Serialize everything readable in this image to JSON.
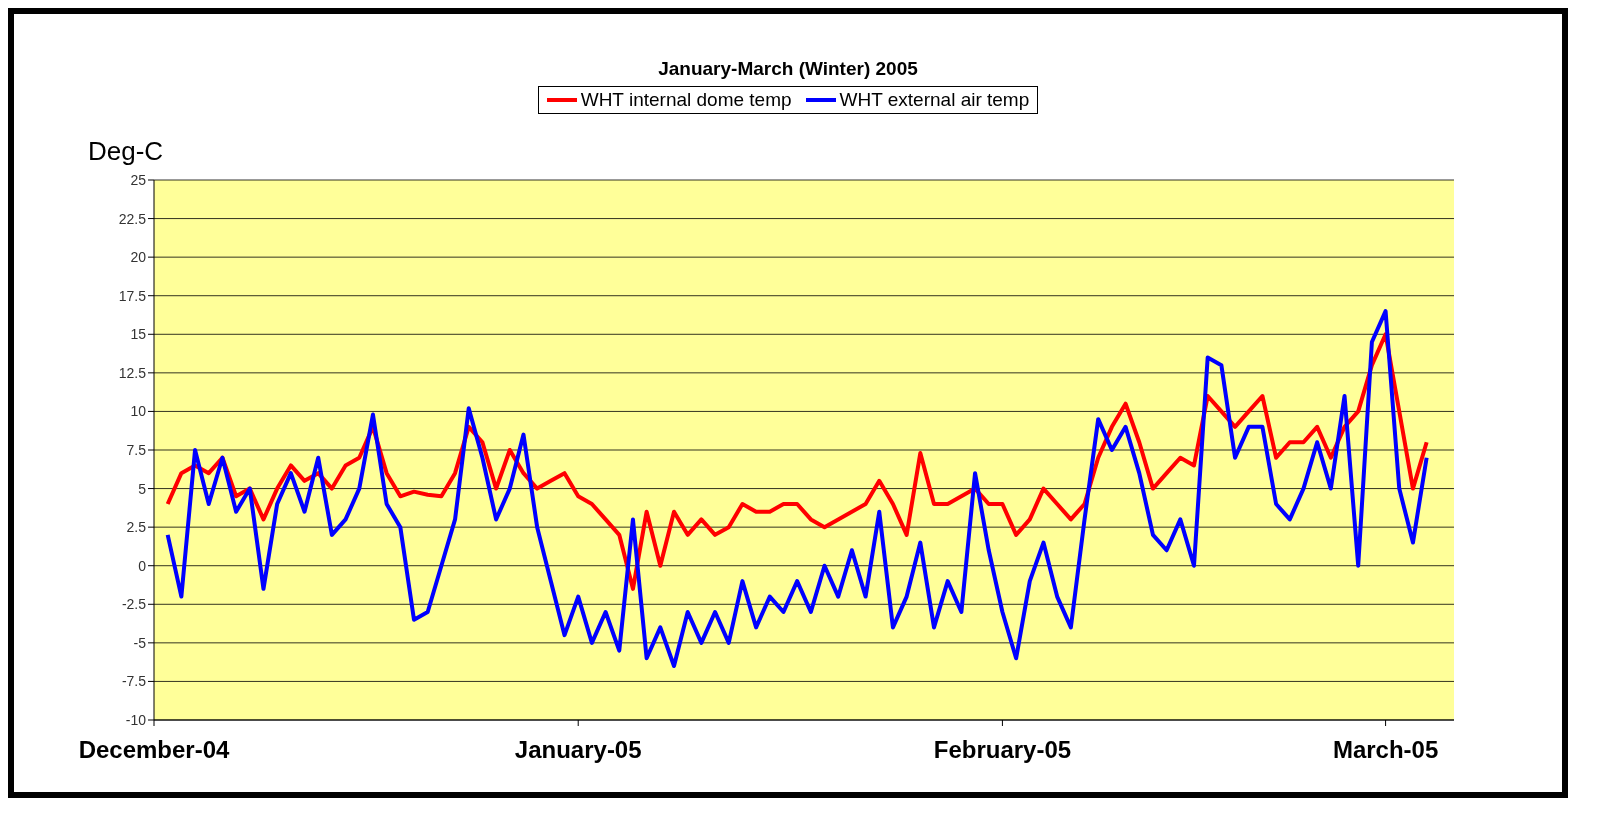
{
  "chart_data": {
    "type": "line",
    "title": "January-March (Winter) 2005",
    "ylabel": "Deg-C",
    "legend": "top",
    "grid": "y",
    "xlim": [
      "2004-12-01",
      "2005-03-06"
    ],
    "xticks": [
      {
        "value": "2004-12-01",
        "label": "December-04"
      },
      {
        "value": "2005-01-01",
        "label": "January-05"
      },
      {
        "value": "2005-02-01",
        "label": "February-05"
      },
      {
        "value": "2005-03-01",
        "label": "March-05"
      }
    ],
    "ylim": [
      -10,
      25
    ],
    "yticks": [
      -10,
      -7.5,
      -5,
      -2.5,
      0,
      2.5,
      5,
      7.5,
      10,
      12.5,
      15,
      17.5,
      20,
      22.5,
      25
    ],
    "x": [
      "2004-12-02",
      "2004-12-03",
      "2004-12-04",
      "2004-12-05",
      "2004-12-06",
      "2004-12-07",
      "2004-12-08",
      "2004-12-09",
      "2004-12-10",
      "2004-12-11",
      "2004-12-12",
      "2004-12-13",
      "2004-12-14",
      "2004-12-15",
      "2004-12-16",
      "2004-12-17",
      "2004-12-18",
      "2004-12-19",
      "2004-12-20",
      "2004-12-21",
      "2004-12-22",
      "2004-12-23",
      "2004-12-24",
      "2004-12-25",
      "2004-12-26",
      "2004-12-27",
      "2004-12-28",
      "2004-12-29",
      "2004-12-30",
      "2004-12-31",
      "2005-01-01",
      "2005-01-02",
      "2005-01-03",
      "2005-01-04",
      "2005-01-05",
      "2005-01-06",
      "2005-01-07",
      "2005-01-08",
      "2005-01-09",
      "2005-01-10",
      "2005-01-11",
      "2005-01-12",
      "2005-01-13",
      "2005-01-14",
      "2005-01-15",
      "2005-01-16",
      "2005-01-17",
      "2005-01-18",
      "2005-01-19",
      "2005-01-20",
      "2005-01-21",
      "2005-01-22",
      "2005-01-23",
      "2005-01-24",
      "2005-01-25",
      "2005-01-26",
      "2005-01-27",
      "2005-01-28",
      "2005-01-29",
      "2005-01-30",
      "2005-01-31",
      "2005-02-01",
      "2005-02-02",
      "2005-02-03",
      "2005-02-04",
      "2005-02-05",
      "2005-02-06",
      "2005-02-07",
      "2005-02-08",
      "2005-02-09",
      "2005-02-10",
      "2005-02-11",
      "2005-02-12",
      "2005-02-13",
      "2005-02-14",
      "2005-02-15",
      "2005-02-16",
      "2005-02-17",
      "2005-02-18",
      "2005-02-19",
      "2005-02-20",
      "2005-02-21",
      "2005-02-22",
      "2005-02-23",
      "2005-02-24",
      "2005-02-25",
      "2005-02-26",
      "2005-02-27",
      "2005-02-28",
      "2005-03-01",
      "2005-03-02",
      "2005-03-03",
      "2005-03-04"
    ],
    "series": [
      {
        "name": "WHT internal dome temp",
        "color": "#ff0000",
        "values": [
          4,
          6,
          6.5,
          6,
          7,
          4.5,
          5,
          3,
          5,
          6.5,
          5.5,
          6,
          5,
          6.5,
          7,
          9,
          6,
          4.5,
          4.8,
          4.6,
          4.5,
          6,
          9,
          8,
          5,
          7.5,
          6,
          5,
          5.5,
          6,
          4.5,
          4,
          3,
          2,
          -1.5,
          3.5,
          0,
          3.5,
          2,
          3,
          2,
          2.5,
          4,
          3.5,
          3.5,
          4,
          4,
          3,
          2.5,
          3,
          3.5,
          4,
          5.5,
          4,
          2,
          7.3,
          4,
          4,
          4.5,
          5,
          4,
          4,
          2,
          3,
          5,
          4,
          3,
          4,
          7,
          9,
          10.5,
          8,
          5,
          6,
          7,
          6.5,
          11,
          10,
          9,
          10,
          11,
          7,
          8,
          8,
          9,
          7,
          9,
          10,
          13,
          15,
          10,
          5,
          8
        ]
      },
      {
        "name": "WHT external air temp",
        "color": "#0000ff",
        "values": [
          2,
          -2,
          7.5,
          4,
          7,
          3.5,
          5,
          -1.5,
          4,
          6,
          3.5,
          7,
          2,
          3,
          5,
          9.8,
          4,
          2.5,
          -3.5,
          -3,
          0,
          3,
          10.2,
          7,
          3,
          5,
          8.5,
          2.5,
          -1,
          -4.5,
          -2,
          -5,
          -3,
          -5.5,
          3,
          -6,
          -4,
          -6.5,
          -3,
          -5,
          -3,
          -5,
          -1,
          -4,
          -2,
          -3,
          -1,
          -3,
          0,
          -2,
          1,
          -2,
          3.5,
          -4,
          -2,
          1.5,
          -4,
          -1,
          -3,
          6,
          1,
          -3,
          -6,
          -1,
          1.5,
          -2,
          -4,
          3,
          9.5,
          7.5,
          9,
          6,
          2,
          1,
          3,
          0,
          13.5,
          13,
          7,
          9,
          9,
          4,
          3,
          5,
          8,
          5,
          11,
          0,
          14.5,
          16.5,
          5,
          1.5,
          7
        ]
      }
    ]
  }
}
